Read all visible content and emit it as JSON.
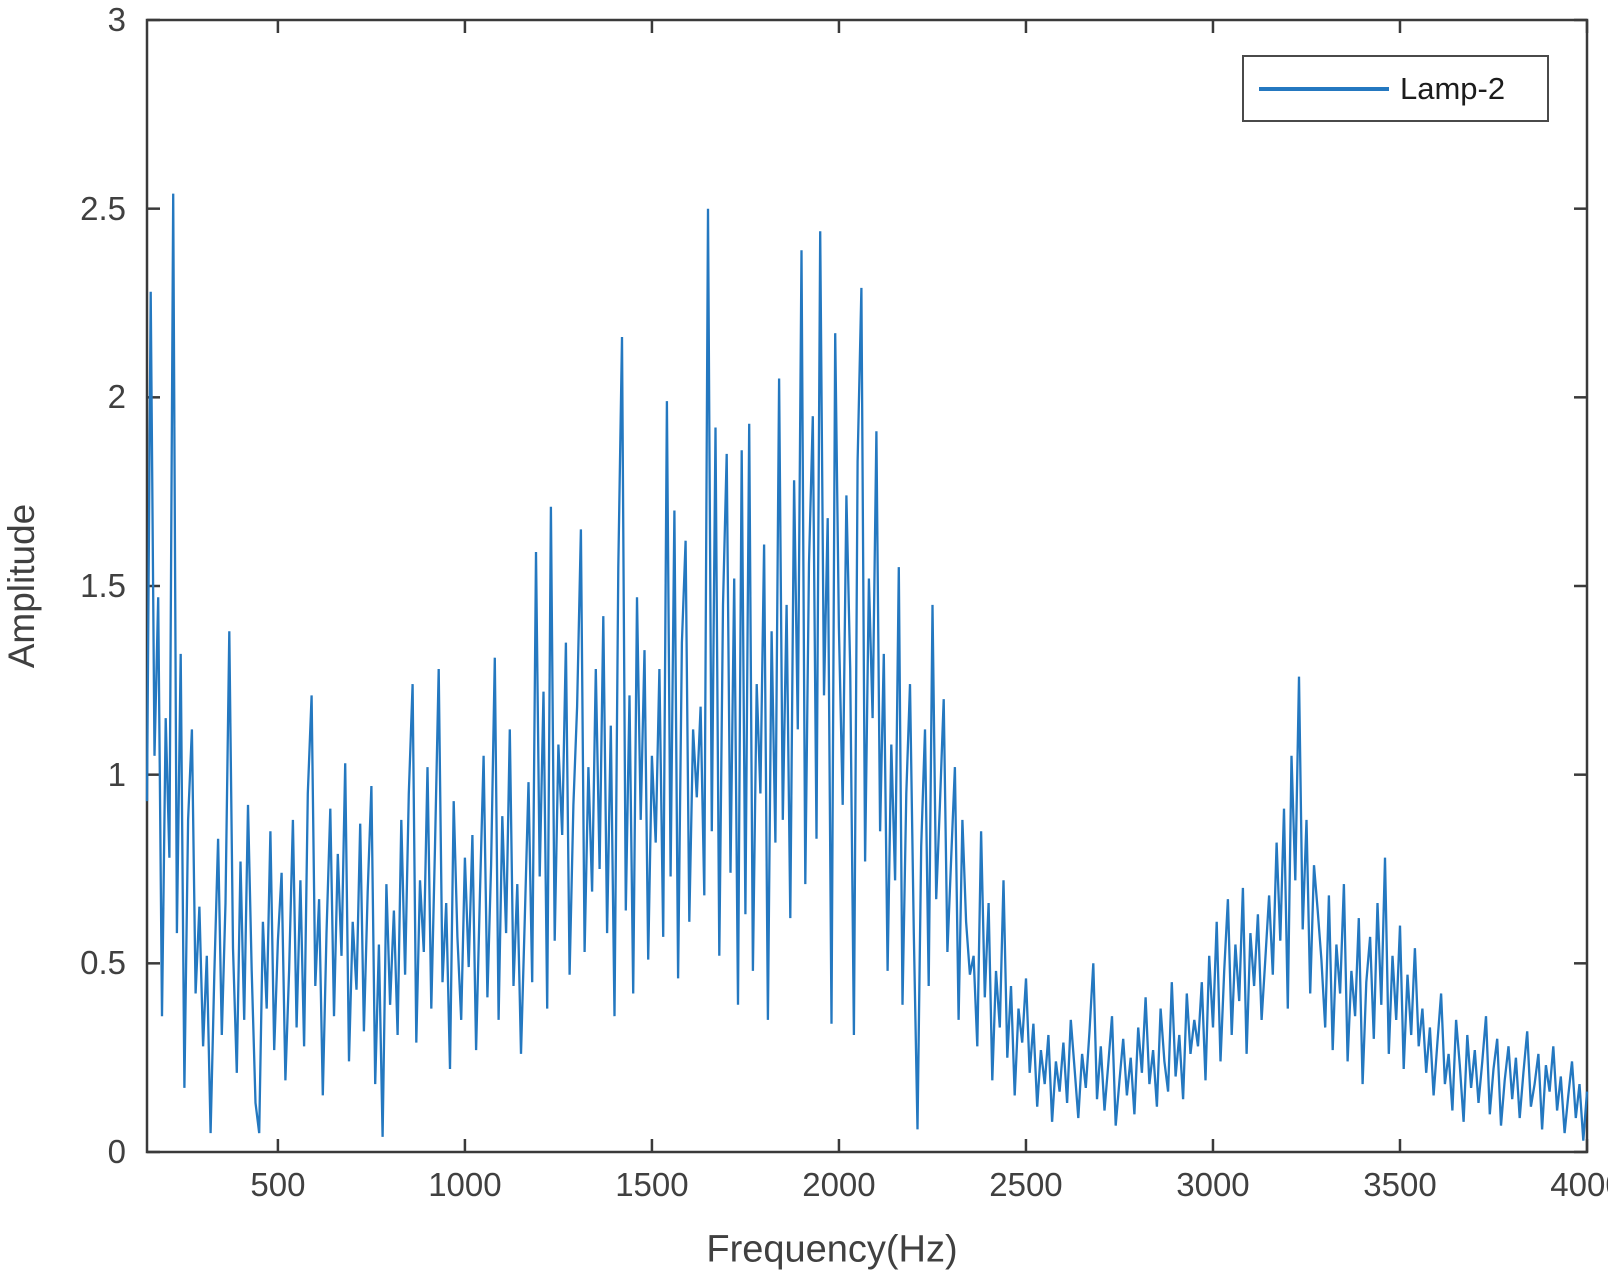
{
  "figure": {
    "background": "#ffffff"
  },
  "legend": {
    "position": "top-right",
    "label": "Lamp-2"
  },
  "chart_data": {
    "type": "line",
    "title": "",
    "xlabel": "Frequency(Hz)",
    "ylabel": "Amplitude",
    "xlim": [
      150,
      4000
    ],
    "ylim": [
      0,
      3
    ],
    "grid": false,
    "box": true,
    "tick_direction": "in",
    "x_tick_values": [
      500,
      1000,
      1500,
      2000,
      2500,
      3000,
      3500,
      4000
    ],
    "x_tick_labels": [
      "500",
      "1000",
      "1500",
      "2000",
      "2500",
      "3000",
      "3500",
      "4000"
    ],
    "y_tick_values": [
      0,
      0.5,
      1,
      1.5,
      2,
      2.5,
      3
    ],
    "y_tick_labels": [
      "0",
      "0.5",
      "1",
      "1.5",
      "2",
      "2.5",
      "3"
    ],
    "axis_color": "#3a3a3a",
    "tick_label_color": "#404040",
    "legend_position": "top-right",
    "series": [
      {
        "name": "Lamp-2",
        "color": "#2478c0",
        "x_start": 150,
        "x_step": 10,
        "values": [
          0.93,
          2.28,
          1.05,
          1.47,
          0.36,
          1.15,
          0.78,
          2.54,
          0.58,
          1.32,
          0.17,
          0.88,
          1.12,
          0.42,
          0.65,
          0.28,
          0.52,
          0.05,
          0.47,
          0.83,
          0.31,
          0.66,
          1.38,
          0.54,
          0.21,
          0.77,
          0.35,
          0.92,
          0.48,
          0.13,
          0.05,
          0.61,
          0.38,
          0.85,
          0.27,
          0.56,
          0.74,
          0.19,
          0.48,
          0.88,
          0.33,
          0.72,
          0.28,
          0.95,
          1.21,
          0.44,
          0.67,
          0.15,
          0.58,
          0.91,
          0.36,
          0.79,
          0.52,
          1.03,
          0.24,
          0.61,
          0.43,
          0.87,
          0.32,
          0.69,
          0.97,
          0.18,
          0.55,
          0.04,
          0.71,
          0.39,
          0.64,
          0.31,
          0.88,
          0.47,
          0.95,
          1.24,
          0.29,
          0.72,
          0.53,
          1.02,
          0.38,
          0.81,
          1.28,
          0.45,
          0.66,
          0.22,
          0.93,
          0.57,
          0.35,
          0.78,
          0.49,
          0.84,
          0.27,
          0.68,
          1.05,
          0.41,
          0.76,
          1.31,
          0.35,
          0.89,
          0.58,
          1.12,
          0.44,
          0.71,
          0.26,
          0.62,
          0.98,
          0.45,
          1.59,
          0.73,
          1.22,
          0.38,
          1.71,
          0.56,
          1.08,
          0.84,
          1.35,
          0.47,
          0.92,
          1.18,
          1.65,
          0.53,
          1.02,
          0.69,
          1.28,
          0.75,
          1.42,
          0.58,
          1.13,
          0.36,
          1.55,
          2.16,
          0.64,
          1.21,
          0.42,
          1.47,
          0.88,
          1.33,
          0.51,
          1.05,
          0.82,
          1.28,
          0.57,
          1.99,
          0.73,
          1.7,
          0.46,
          1.35,
          1.62,
          0.61,
          1.12,
          0.94,
          1.18,
          0.68,
          2.5,
          0.85,
          1.92,
          0.52,
          1.45,
          1.85,
          0.74,
          1.52,
          0.39,
          1.86,
          0.63,
          1.93,
          0.48,
          1.24,
          0.95,
          1.61,
          0.35,
          1.38,
          0.82,
          2.05,
          0.88,
          1.45,
          0.62,
          1.78,
          1.12,
          2.39,
          0.71,
          1.56,
          1.95,
          0.83,
          2.44,
          1.21,
          1.68,
          0.34,
          2.17,
          1.39,
          0.92,
          1.74,
          1.28,
          0.31,
          1.83,
          2.29,
          0.77,
          1.52,
          1.15,
          1.91,
          0.85,
          1.32,
          0.48,
          1.08,
          0.72,
          1.55,
          0.39,
          0.95,
          1.24,
          0.58,
          0.06,
          0.81,
          1.12,
          0.44,
          1.45,
          0.67,
          0.92,
          1.2,
          0.53,
          0.78,
          1.02,
          0.35,
          0.88,
          0.61,
          0.47,
          0.52,
          0.28,
          0.85,
          0.41,
          0.66,
          0.19,
          0.48,
          0.33,
          0.72,
          0.25,
          0.44,
          0.15,
          0.38,
          0.29,
          0.46,
          0.21,
          0.34,
          0.12,
          0.27,
          0.18,
          0.31,
          0.08,
          0.24,
          0.16,
          0.29,
          0.13,
          0.35,
          0.22,
          0.09,
          0.26,
          0.17,
          0.32,
          0.5,
          0.14,
          0.28,
          0.11,
          0.23,
          0.36,
          0.07,
          0.19,
          0.3,
          0.15,
          0.25,
          0.1,
          0.33,
          0.21,
          0.41,
          0.18,
          0.27,
          0.12,
          0.38,
          0.24,
          0.16,
          0.45,
          0.2,
          0.31,
          0.14,
          0.42,
          0.26,
          0.35,
          0.28,
          0.45,
          0.19,
          0.52,
          0.33,
          0.61,
          0.24,
          0.48,
          0.67,
          0.31,
          0.55,
          0.4,
          0.7,
          0.26,
          0.58,
          0.44,
          0.63,
          0.35,
          0.51,
          0.68,
          0.47,
          0.82,
          0.56,
          0.91,
          0.38,
          1.05,
          0.72,
          1.26,
          0.59,
          0.88,
          0.42,
          0.76,
          0.64,
          0.51,
          0.33,
          0.68,
          0.27,
          0.55,
          0.42,
          0.71,
          0.24,
          0.48,
          0.36,
          0.62,
          0.18,
          0.45,
          0.57,
          0.3,
          0.66,
          0.39,
          0.78,
          0.26,
          0.52,
          0.35,
          0.6,
          0.22,
          0.47,
          0.31,
          0.54,
          0.28,
          0.38,
          0.21,
          0.33,
          0.15,
          0.29,
          0.42,
          0.18,
          0.26,
          0.11,
          0.35,
          0.23,
          0.08,
          0.31,
          0.17,
          0.27,
          0.13,
          0.24,
          0.36,
          0.1,
          0.22,
          0.3,
          0.07,
          0.19,
          0.28,
          0.14,
          0.25,
          0.09,
          0.21,
          0.32,
          0.12,
          0.18,
          0.26,
          0.06,
          0.23,
          0.16,
          0.28,
          0.11,
          0.2,
          0.05,
          0.15,
          0.24,
          0.09,
          0.18,
          0.03,
          0.16
        ]
      }
    ]
  }
}
